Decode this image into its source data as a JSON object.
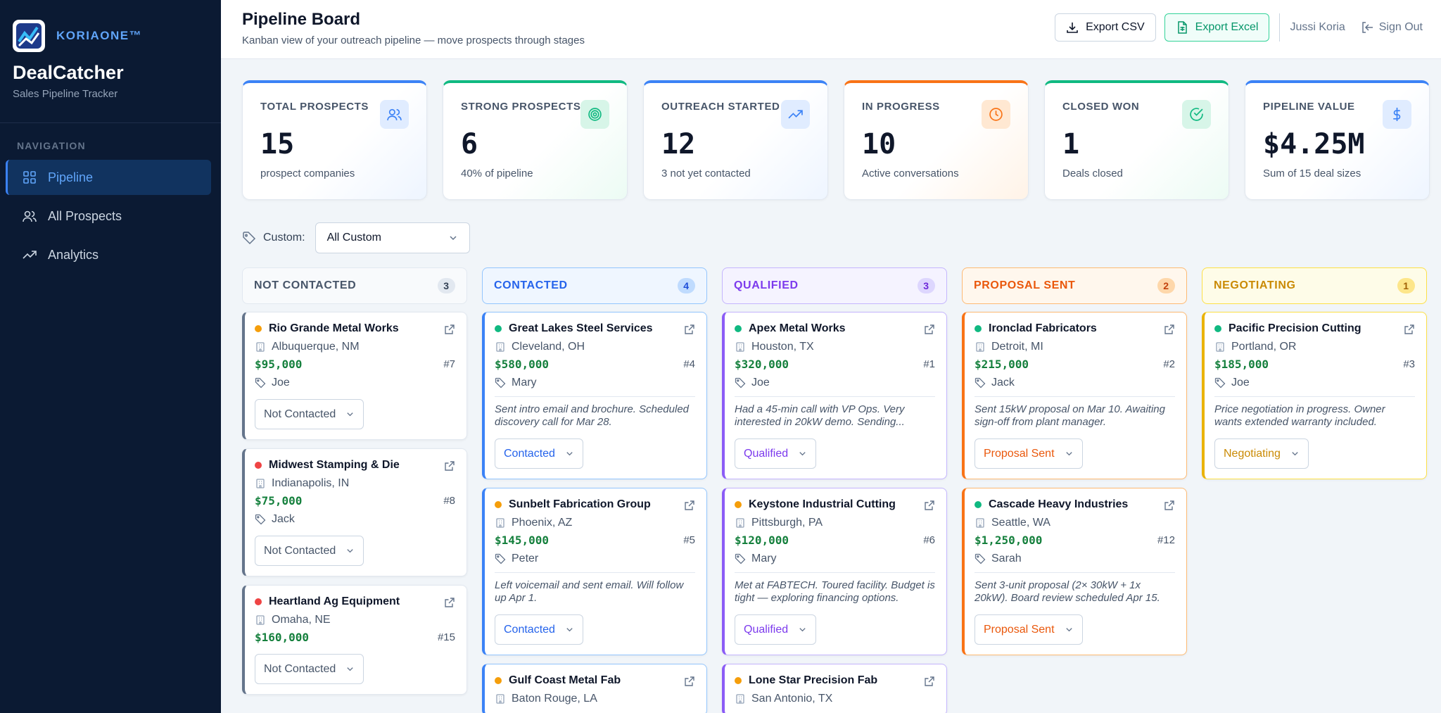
{
  "sidebar": {
    "brand": "KORIAONE™",
    "app_title": "DealCatcher",
    "app_subtitle": "Sales Pipeline Tracker",
    "nav_heading": "NAVIGATION",
    "items": [
      {
        "label": "Pipeline",
        "icon": "grid-icon",
        "active": true
      },
      {
        "label": "All Prospects",
        "icon": "users-icon",
        "active": false
      },
      {
        "label": "Analytics",
        "icon": "trending-up-icon",
        "active": false
      }
    ]
  },
  "header": {
    "title": "Pipeline Board",
    "subtitle": "Kanban view of your outreach pipeline — move prospects through stages",
    "export_csv": "Export CSV",
    "export_excel": "Export Excel",
    "user": "Jussi Koria",
    "sign_out": "Sign Out"
  },
  "stats": [
    {
      "label": "TOTAL PROSPECTS",
      "value": "15",
      "note": "prospect companies",
      "color": "#3b82f6",
      "icon": "users-icon"
    },
    {
      "label": "STRONG PROSPECTS",
      "value": "6",
      "note": "40% of pipeline",
      "color": "#10b981",
      "icon": "target-icon"
    },
    {
      "label": "OUTREACH STARTED",
      "value": "12",
      "note": "3 not yet contacted",
      "color": "#3b82f6",
      "icon": "trending-up-icon"
    },
    {
      "label": "IN PROGRESS",
      "value": "10",
      "note": "Active conversations",
      "color": "#f97316",
      "icon": "clock-icon"
    },
    {
      "label": "CLOSED WON",
      "value": "1",
      "note": "Deals closed",
      "color": "#10b981",
      "icon": "check-circle-icon"
    },
    {
      "label": "PIPELINE VALUE",
      "value": "$4.25M",
      "note": "Sum of 15 deal sizes",
      "color": "#3b82f6",
      "icon": "dollar-icon"
    }
  ],
  "filter": {
    "label": "Custom:",
    "value": "All Custom"
  },
  "columns": [
    {
      "title": "NOT CONTACTED",
      "count": "3",
      "color": "#64748b",
      "cards": [
        {
          "name": "Rio Grande Metal Works",
          "location": "Albuquerque, NM",
          "value": "$95,000",
          "id": "#7",
          "owner": "Joe",
          "note": "",
          "status": "Not Contacted",
          "dot": "#f59e0b"
        },
        {
          "name": "Midwest Stamping & Die",
          "location": "Indianapolis, IN",
          "value": "$75,000",
          "id": "#8",
          "owner": "Jack",
          "note": "",
          "status": "Not Contacted",
          "dot": "#ef4444"
        },
        {
          "name": "Heartland Ag Equipment",
          "location": "Omaha, NE",
          "value": "$160,000",
          "id": "#15",
          "owner": "",
          "note": "",
          "status": "Not Contacted",
          "dot": "#ef4444"
        }
      ]
    },
    {
      "title": "CONTACTED",
      "count": "4",
      "color": "#3b82f6",
      "cards": [
        {
          "name": "Great Lakes Steel Services",
          "location": "Cleveland, OH",
          "value": "$580,000",
          "id": "#4",
          "owner": "Mary",
          "note": "Sent intro email and brochure. Scheduled discovery call for Mar 28.",
          "status": "Contacted",
          "dot": "#10b981"
        },
        {
          "name": "Sunbelt Fabrication Group",
          "location": "Phoenix, AZ",
          "value": "$145,000",
          "id": "#5",
          "owner": "Peter",
          "note": "Left voicemail and sent email. Will follow up Apr 1.",
          "status": "Contacted",
          "dot": "#f59e0b"
        },
        {
          "name": "Gulf Coast Metal Fab",
          "location": "Baton Rouge, LA",
          "value": "",
          "id": "",
          "owner": "",
          "note": "",
          "status": "",
          "dot": "#f59e0b"
        }
      ]
    },
    {
      "title": "QUALIFIED",
      "count": "3",
      "color": "#8b5cf6",
      "cards": [
        {
          "name": "Apex Metal Works",
          "location": "Houston, TX",
          "value": "$320,000",
          "id": "#1",
          "owner": "Joe",
          "note": "Had a 45-min call with VP Ops. Very interested in 20kW demo. Sending...",
          "status": "Qualified",
          "dot": "#10b981"
        },
        {
          "name": "Keystone Industrial Cutting",
          "location": "Pittsburgh, PA",
          "value": "$120,000",
          "id": "#6",
          "owner": "Mary",
          "note": "Met at FABTECH. Toured facility. Budget is tight — exploring financing options.",
          "status": "Qualified",
          "dot": "#f59e0b"
        },
        {
          "name": "Lone Star Precision Fab",
          "location": "San Antonio, TX",
          "value": "",
          "id": "",
          "owner": "",
          "note": "",
          "status": "",
          "dot": "#f59e0b"
        }
      ]
    },
    {
      "title": "PROPOSAL SENT",
      "count": "2",
      "color": "#f97316",
      "cards": [
        {
          "name": "Ironclad Fabricators",
          "location": "Detroit, MI",
          "value": "$215,000",
          "id": "#2",
          "owner": "Jack",
          "note": "Sent 15kW proposal on Mar 10. Awaiting sign-off from plant manager.",
          "status": "Proposal Sent",
          "dot": "#10b981"
        },
        {
          "name": "Cascade Heavy Industries",
          "location": "Seattle, WA",
          "value": "$1,250,000",
          "id": "#12",
          "owner": "Sarah",
          "note": "Sent 3-unit proposal (2× 30kW + 1x 20kW). Board review scheduled Apr 15.",
          "status": "Proposal Sent",
          "dot": "#10b981"
        }
      ]
    },
    {
      "title": "NEGOTIATING",
      "count": "1",
      "color": "#eab308",
      "cards": [
        {
          "name": "Pacific Precision Cutting",
          "location": "Portland, OR",
          "value": "$185,000",
          "id": "#3",
          "owner": "Joe",
          "note": "Price negotiation in progress. Owner wants extended warranty included.",
          "status": "Negotiating",
          "dot": "#10b981"
        }
      ]
    }
  ]
}
